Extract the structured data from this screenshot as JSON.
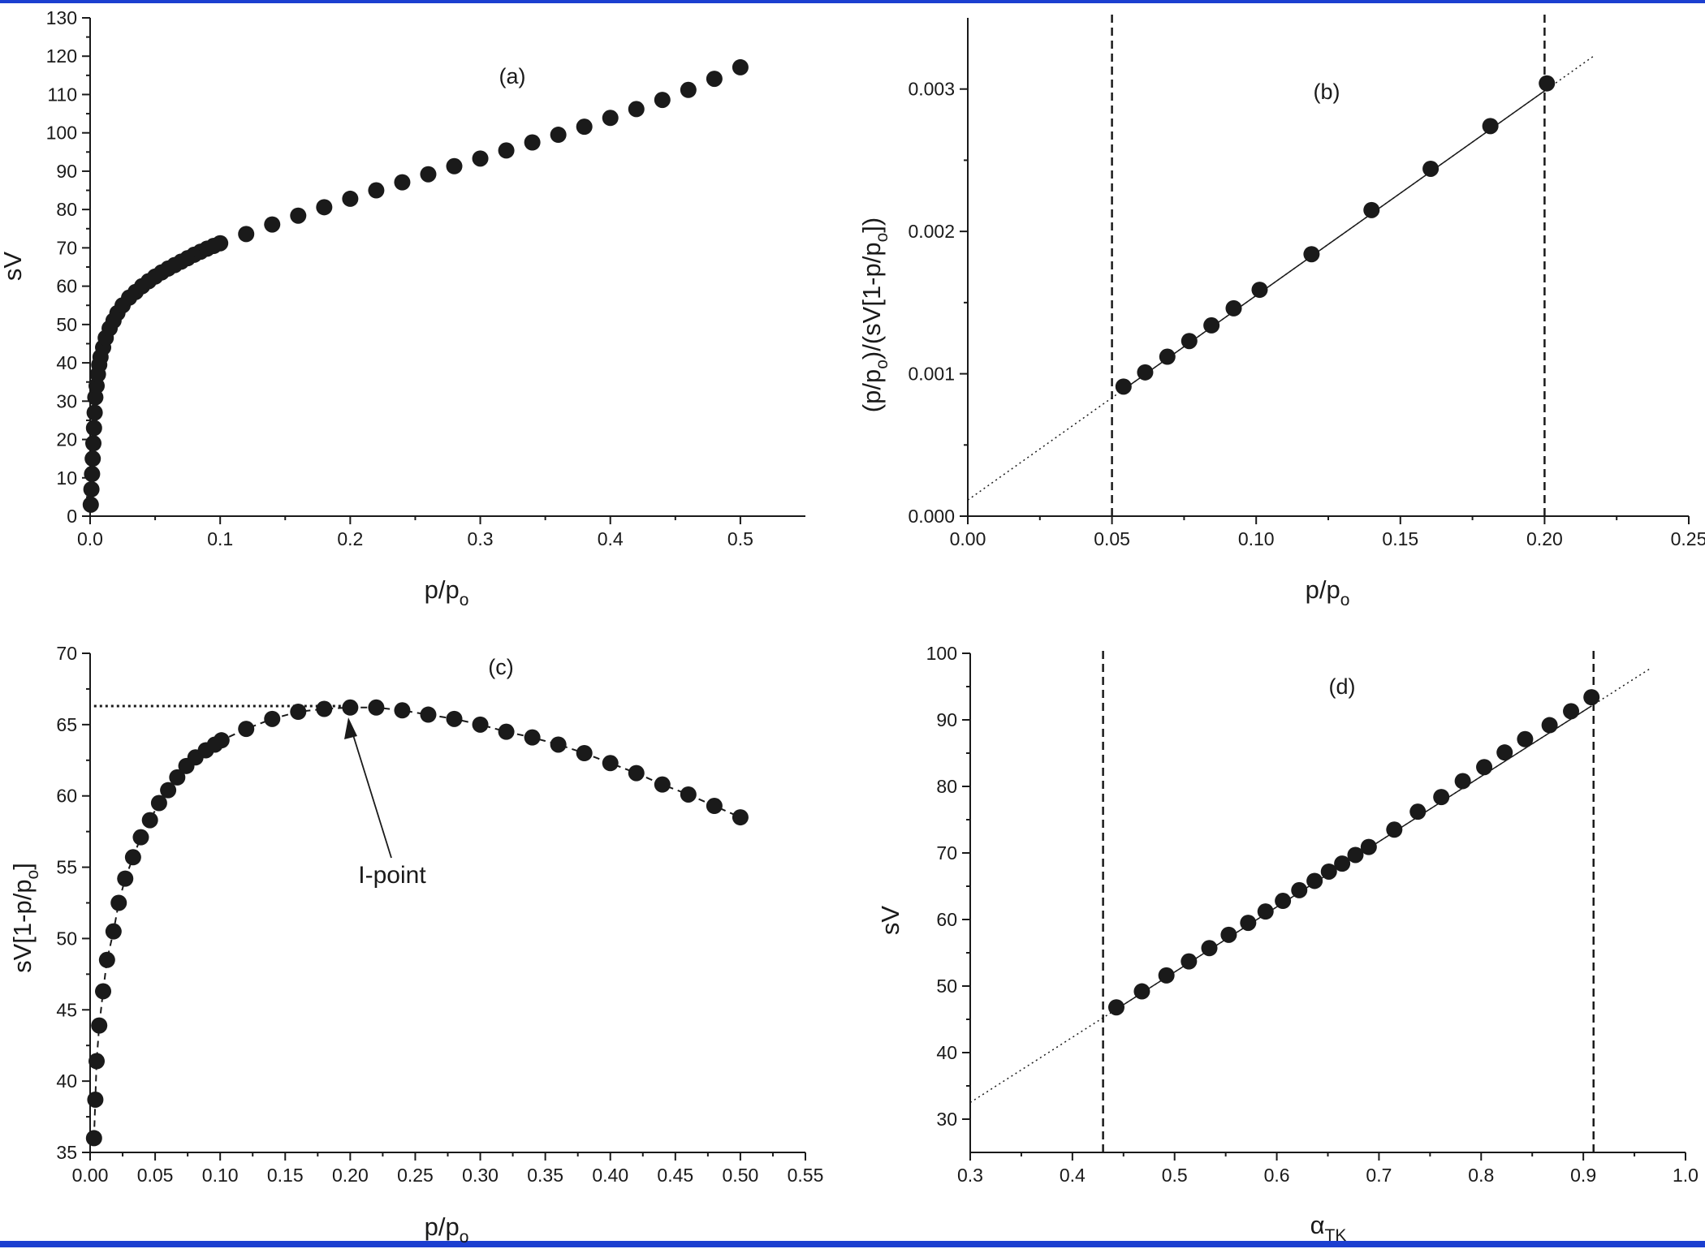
{
  "colors": {
    "frame": "#1c3fd0",
    "ink": "#1a1a1a"
  },
  "chart_data": [
    {
      "id": "a",
      "type": "scatter",
      "panel_label": "(a)",
      "xlabel": "p/p",
      "xlabel_sub": "o",
      "ylabel": "sV",
      "xlim": [
        0.0,
        0.55
      ],
      "ylim": [
        0,
        130
      ],
      "xticks": [
        "0.0",
        "0.1",
        "0.2",
        "0.3",
        "0.4",
        "0.5"
      ],
      "xtick_values": [
        0.0,
        0.1,
        0.2,
        0.3,
        0.4,
        0.5
      ],
      "yticks": [
        "0",
        "10",
        "20",
        "30",
        "40",
        "50",
        "60",
        "70",
        "80",
        "90",
        "100",
        "110",
        "120",
        "130"
      ],
      "ytick_values": [
        0,
        10,
        20,
        30,
        40,
        50,
        60,
        70,
        80,
        90,
        100,
        110,
        120,
        130
      ],
      "grid": false,
      "series": [
        {
          "x": [
            0.0005,
            0.001,
            0.0015,
            0.002,
            0.0025,
            0.003,
            0.0035,
            0.004,
            0.005,
            0.006,
            0.007,
            0.008,
            0.01,
            0.012,
            0.015,
            0.018,
            0.021,
            0.025,
            0.03,
            0.035,
            0.04,
            0.045,
            0.05,
            0.055,
            0.06,
            0.065,
            0.07,
            0.075,
            0.08,
            0.085,
            0.09,
            0.095,
            0.1,
            0.12,
            0.14,
            0.16,
            0.18,
            0.2,
            0.22,
            0.24,
            0.26,
            0.28,
            0.3,
            0.32,
            0.34,
            0.36,
            0.38,
            0.4,
            0.42,
            0.44,
            0.46,
            0.48,
            0.5
          ],
          "y": [
            3,
            7,
            11,
            15,
            19,
            23,
            27,
            31,
            34,
            37,
            39.5,
            41.5,
            44,
            46.5,
            49,
            51,
            53,
            55,
            57,
            58.5,
            60,
            61.3,
            62.5,
            63.6,
            64.6,
            65.5,
            66.4,
            67.3,
            68.2,
            69,
            69.8,
            70.5,
            71.2,
            73.6,
            76.1,
            78.4,
            80.6,
            82.8,
            85,
            87.1,
            89.2,
            91.3,
            93.3,
            95.4,
            97.5,
            99.5,
            101.6,
            103.9,
            106.2,
            108.6,
            111.2,
            114.1,
            117.1
          ]
        }
      ]
    },
    {
      "id": "b",
      "type": "scatter",
      "panel_label": "(b)",
      "xlabel": "p/p",
      "xlabel_sub": "o",
      "ylabel_parts": [
        "(p/p",
        "o",
        ")/(sV[1-p/p",
        "o",
        "])"
      ],
      "xlim": [
        0.0,
        0.25
      ],
      "ylim": [
        0.0,
        0.0035
      ],
      "xticks": [
        "0.00",
        "0.05",
        "0.10",
        "0.15",
        "0.20",
        "0.25"
      ],
      "xtick_values": [
        0.0,
        0.05,
        0.1,
        0.15,
        0.2,
        0.25
      ],
      "yticks": [
        "0.000",
        "0.001",
        "0.002",
        "0.003"
      ],
      "ytick_values": [
        0.0,
        0.001,
        0.002,
        0.003
      ],
      "grid": false,
      "vlines": [
        0.05,
        0.2
      ],
      "fit": {
        "slope": 0.01437,
        "intercept": 0.000113,
        "x_range": [
          0.0,
          0.2175
        ],
        "solid_range": [
          0.054,
          0.2
        ]
      },
      "series": [
        {
          "x": [
            0.054,
            0.0615,
            0.0692,
            0.0768,
            0.0845,
            0.0922,
            0.1012,
            0.1192,
            0.14,
            0.1605,
            0.1812,
            0.2008
          ],
          "y": [
            0.00091,
            0.00101,
            0.00112,
            0.00123,
            0.00134,
            0.00146,
            0.00159,
            0.00184,
            0.00215,
            0.00244,
            0.00274,
            0.00304
          ]
        }
      ]
    },
    {
      "id": "c",
      "type": "scatter",
      "panel_label": "(c)",
      "xlabel": "p/p",
      "xlabel_sub": "o",
      "ylabel_parts": [
        "sV[1-p/p",
        "o",
        "]"
      ],
      "xlim": [
        0.0,
        0.55
      ],
      "ylim": [
        35,
        70
      ],
      "xticks": [
        "0.00",
        "0.05",
        "0.10",
        "0.15",
        "0.20",
        "0.25",
        "0.30",
        "0.35",
        "0.40",
        "0.45",
        "0.50",
        "0.55"
      ],
      "xtick_values": [
        0.0,
        0.05,
        0.1,
        0.15,
        0.2,
        0.25,
        0.3,
        0.35,
        0.4,
        0.45,
        0.5,
        0.55
      ],
      "yticks": [
        "35",
        "40",
        "45",
        "50",
        "55",
        "60",
        "65",
        "70"
      ],
      "ytick_values": [
        35,
        40,
        45,
        50,
        55,
        60,
        65,
        70
      ],
      "grid": false,
      "annotation": {
        "text": "I-point",
        "x": 0.2,
        "y": 66.2
      },
      "hline": {
        "y": 66.3,
        "x_from": 0.003,
        "x_to": 0.2
      },
      "series": [
        {
          "x": [
            0.003,
            0.004,
            0.005,
            0.007,
            0.01,
            0.013,
            0.018,
            0.022,
            0.027,
            0.033,
            0.039,
            0.046,
            0.053,
            0.06,
            0.067,
            0.074,
            0.081,
            0.089,
            0.096,
            0.101,
            0.12,
            0.14,
            0.16,
            0.18,
            0.2,
            0.22,
            0.24,
            0.26,
            0.28,
            0.3,
            0.32,
            0.34,
            0.36,
            0.38,
            0.4,
            0.42,
            0.44,
            0.46,
            0.48,
            0.5
          ],
          "y": [
            36,
            38.7,
            41.4,
            43.9,
            46.3,
            48.5,
            50.5,
            52.5,
            54.2,
            55.7,
            57.1,
            58.3,
            59.5,
            60.4,
            61.3,
            62.1,
            62.7,
            63.2,
            63.6,
            63.9,
            64.7,
            65.4,
            65.9,
            66.1,
            66.2,
            66.2,
            66,
            65.7,
            65.4,
            65,
            64.5,
            64.1,
            63.6,
            63,
            62.3,
            61.6,
            60.8,
            60.1,
            59.3,
            58.5
          ]
        }
      ]
    },
    {
      "id": "d",
      "type": "scatter",
      "panel_label": "(d)",
      "xlabel": "α",
      "xlabel_sub": "TK",
      "ylabel": "sV",
      "xlim": [
        0.3,
        1.0
      ],
      "ylim": [
        25,
        100
      ],
      "xticks": [
        "0.3",
        "0.4",
        "0.5",
        "0.6",
        "0.7",
        "0.8",
        "0.9",
        "1.0"
      ],
      "xtick_values": [
        0.3,
        0.4,
        0.5,
        0.6,
        0.7,
        0.8,
        0.9,
        1.0
      ],
      "yticks": [
        "30",
        "40",
        "50",
        "60",
        "70",
        "80",
        "90",
        "100"
      ],
      "ytick_values": [
        30,
        40,
        50,
        60,
        70,
        80,
        90,
        100
      ],
      "grid": false,
      "vlines": [
        0.43,
        0.91
      ],
      "fit": {
        "slope": 98.0,
        "intercept": 3.1,
        "x_range": [
          0.3,
          0.965
        ],
        "solid_range": [
          0.443,
          0.908
        ]
      },
      "series": [
        {
          "x": [
            0.443,
            0.468,
            0.492,
            0.514,
            0.534,
            0.553,
            0.572,
            0.589,
            0.606,
            0.622,
            0.637,
            0.651,
            0.664,
            0.677,
            0.69,
            0.715,
            0.738,
            0.761,
            0.782,
            0.803,
            0.823,
            0.843,
            0.867,
            0.888,
            0.908
          ],
          "y": [
            46.8,
            49.2,
            51.6,
            53.7,
            55.7,
            57.7,
            59.5,
            61.2,
            62.8,
            64.4,
            65.8,
            67.2,
            68.4,
            69.7,
            70.9,
            73.5,
            76.2,
            78.4,
            80.8,
            82.9,
            85.1,
            87.1,
            89.2,
            91.3,
            93.4
          ]
        }
      ]
    }
  ]
}
